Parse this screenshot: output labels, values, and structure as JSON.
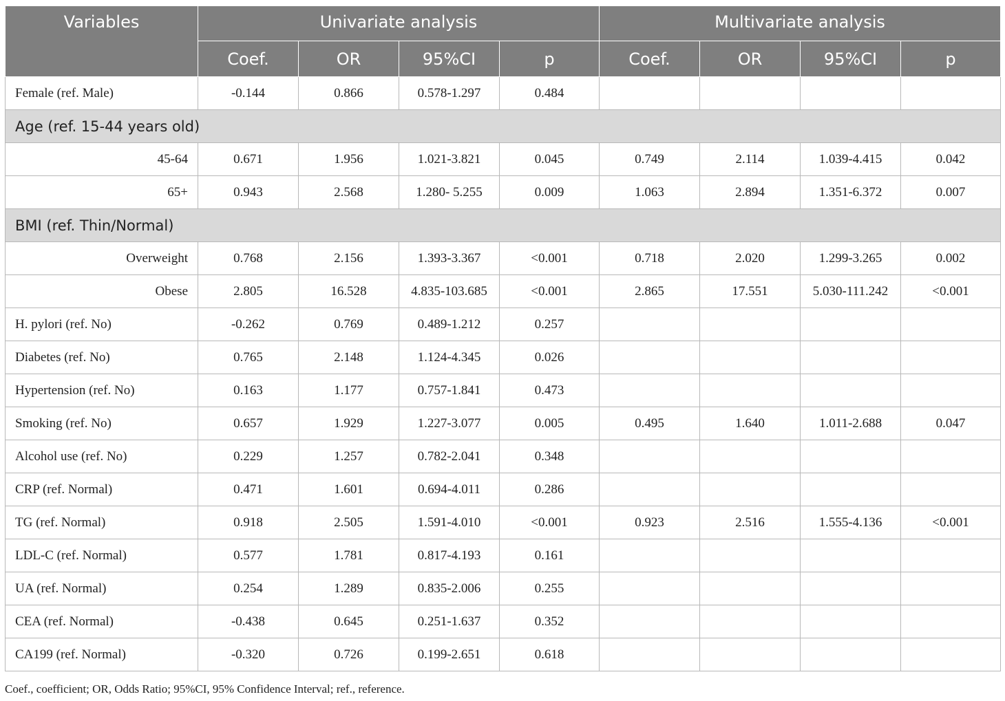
{
  "header": {
    "variables": "Variables",
    "univariate": "Univariate analysis",
    "multivariate": "Multivariate analysis",
    "coef": "Coef.",
    "or": "OR",
    "ci": "95%CI",
    "p": "p"
  },
  "rows": [
    {
      "type": "row",
      "label": "Female (ref. Male)",
      "indent": false,
      "u": [
        "-0.144",
        "0.866",
        "0.578-1.297",
        "0.484"
      ],
      "m": [
        "",
        "",
        "",
        ""
      ]
    },
    {
      "type": "section",
      "label": "Age (ref. 15-44 years old)"
    },
    {
      "type": "row",
      "label": "45-64",
      "indent": true,
      "u": [
        "0.671",
        "1.956",
        "1.021-3.821",
        "0.045"
      ],
      "m": [
        "0.749",
        "2.114",
        "1.039-4.415",
        "0.042"
      ]
    },
    {
      "type": "row",
      "label": "65+",
      "indent": true,
      "u": [
        "0.943",
        "2.568",
        "1.280- 5.255",
        "0.009"
      ],
      "m": [
        "1.063",
        "2.894",
        "1.351-6.372",
        "0.007"
      ]
    },
    {
      "type": "section",
      "label": "BMI (ref. Thin/Normal)"
    },
    {
      "type": "row",
      "label": "Overweight",
      "indent": true,
      "u": [
        "0.768",
        "2.156",
        "1.393-3.367",
        "<0.001"
      ],
      "m": [
        "0.718",
        "2.020",
        "1.299-3.265",
        "0.002"
      ]
    },
    {
      "type": "row",
      "label": "Obese",
      "indent": true,
      "u": [
        "2.805",
        "16.528",
        "4.835-103.685",
        "<0.001"
      ],
      "m": [
        "2.865",
        "17.551",
        "5.030-111.242",
        "<0.001"
      ]
    },
    {
      "type": "row",
      "label": "H. pylori (ref. No)",
      "indent": false,
      "u": [
        "-0.262",
        "0.769",
        "0.489-1.212",
        "0.257"
      ],
      "m": [
        "",
        "",
        "",
        ""
      ]
    },
    {
      "type": "row",
      "label": "Diabetes (ref. No)",
      "indent": false,
      "u": [
        "0.765",
        "2.148",
        "1.124-4.345",
        "0.026"
      ],
      "m": [
        "",
        "",
        "",
        ""
      ]
    },
    {
      "type": "row",
      "label": "Hypertension (ref. No)",
      "indent": false,
      "u": [
        "0.163",
        "1.177",
        "0.757-1.841",
        "0.473"
      ],
      "m": [
        "",
        "",
        "",
        ""
      ]
    },
    {
      "type": "row",
      "label": "Smoking (ref. No)",
      "indent": false,
      "u": [
        "0.657",
        "1.929",
        "1.227-3.077",
        "0.005"
      ],
      "m": [
        "0.495",
        "1.640",
        "1.011-2.688",
        "0.047"
      ]
    },
    {
      "type": "row",
      "label": "Alcohol use (ref. No)",
      "indent": false,
      "u": [
        "0.229",
        "1.257",
        "0.782-2.041",
        "0.348"
      ],
      "m": [
        "",
        "",
        "",
        ""
      ]
    },
    {
      "type": "row",
      "label": "CRP (ref. Normal)",
      "indent": false,
      "u": [
        "0.471",
        "1.601",
        "0.694-4.011",
        "0.286"
      ],
      "m": [
        "",
        "",
        "",
        ""
      ]
    },
    {
      "type": "row",
      "label": "TG (ref. Normal)",
      "indent": false,
      "u": [
        "0.918",
        "2.505",
        "1.591-4.010",
        "<0.001"
      ],
      "m": [
        "0.923",
        "2.516",
        "1.555-4.136",
        "<0.001"
      ]
    },
    {
      "type": "row",
      "label": "LDL-C (ref. Normal)",
      "indent": false,
      "u": [
        "0.577",
        "1.781",
        "0.817-4.193",
        "0.161"
      ],
      "m": [
        "",
        "",
        "",
        ""
      ]
    },
    {
      "type": "row",
      "label": "UA (ref. Normal)",
      "indent": false,
      "u": [
        "0.254",
        "1.289",
        "0.835-2.006",
        "0.255"
      ],
      "m": [
        "",
        "",
        "",
        ""
      ]
    },
    {
      "type": "row",
      "label": "CEA (ref. Normal)",
      "indent": false,
      "u": [
        "-0.438",
        "0.645",
        "0.251-1.637",
        "0.352"
      ],
      "m": [
        "",
        "",
        "",
        ""
      ]
    },
    {
      "type": "row",
      "label": "CA199 (ref. Normal)",
      "indent": false,
      "u": [
        "-0.320",
        "0.726",
        "0.199-2.651",
        "0.618"
      ],
      "m": [
        "",
        "",
        "",
        ""
      ]
    }
  ],
  "footnote": "Coef., coefficient; OR, Odds Ratio; 95%CI, 95% Confidence Interval; ref., reference."
}
